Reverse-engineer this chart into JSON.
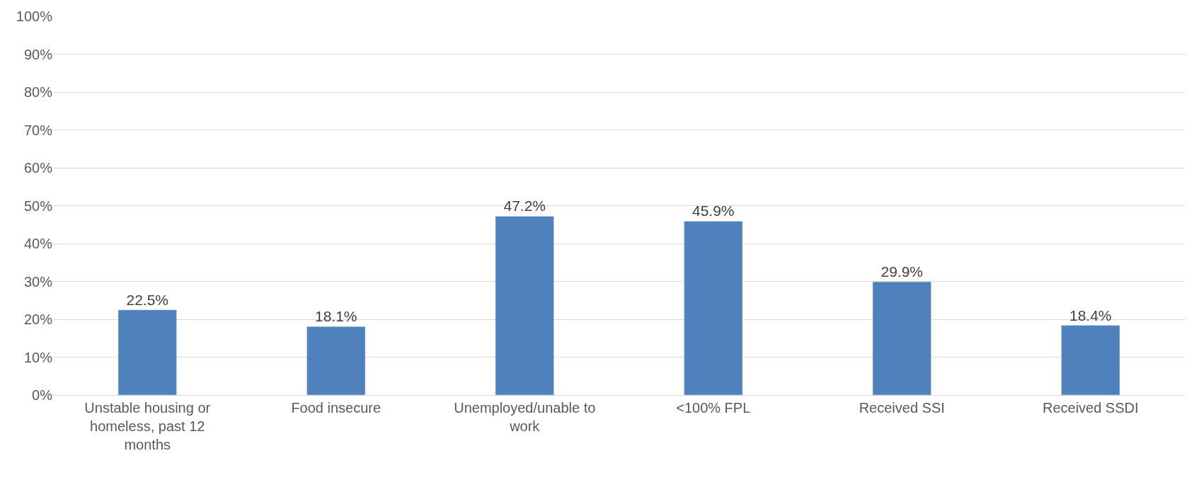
{
  "chart_data": {
    "type": "bar",
    "categories": [
      "Unstable housing or homeless, past 12 months",
      "Food insecure",
      "Unemployed/unable to work",
      "<100% FPL",
      "Received SSI",
      "Received SSDI"
    ],
    "values": [
      22.5,
      18.1,
      47.2,
      45.9,
      29.9,
      18.4
    ],
    "value_labels": [
      "22.5%",
      "18.1%",
      "47.2%",
      "45.9%",
      "29.9%",
      "18.4%"
    ],
    "color": "#4f81bd",
    "ylim": [
      0,
      100
    ],
    "yticks": [
      {
        "value": 0,
        "label": "0%"
      },
      {
        "value": 10,
        "label": "10%"
      },
      {
        "value": 20,
        "label": "20%"
      },
      {
        "value": 30,
        "label": "30%"
      },
      {
        "value": 40,
        "label": "40%"
      },
      {
        "value": 50,
        "label": "50%"
      },
      {
        "value": 60,
        "label": "60%"
      },
      {
        "value": 70,
        "label": "70%"
      },
      {
        "value": 80,
        "label": "80%"
      },
      {
        "value": 90,
        "label": "90%"
      },
      {
        "value": 100,
        "label": "100%"
      }
    ],
    "grid": "y"
  }
}
